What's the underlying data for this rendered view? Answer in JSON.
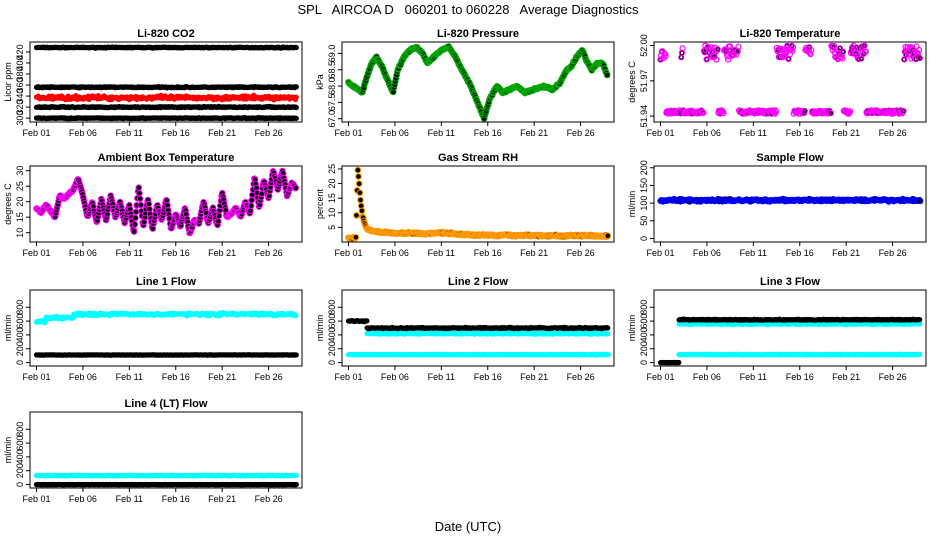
{
  "title": "SPL   AIRCOA D   060201 to 060228   Average Diagnostics",
  "x_axis_title": "Date (UTC)",
  "x_ticks": [
    "Feb 01",
    "Feb 06",
    "Feb 11",
    "Feb 16",
    "Feb 21",
    "Feb 26"
  ],
  "x_tick_days": [
    1,
    6,
    11,
    16,
    21,
    26
  ],
  "x_range_days": [
    0.3,
    29.6
  ],
  "colors": {
    "black": "#000000",
    "red": "#ff0000",
    "magenta": "#ff00ff",
    "green": "#00aa00",
    "cyan": "#00ffff",
    "blue": "#0000ff",
    "orange": "#ff9900"
  },
  "chart_data": [
    {
      "type": "scatter",
      "title": "Li-820 CO2",
      "ylabel": "Licor ppm",
      "yticks": [
        "300",
        "320",
        "340",
        "360",
        "380",
        "400",
        "420"
      ],
      "ylim": [
        293,
        438
      ],
      "series": [
        {
          "name": "ref-high",
          "color": "black",
          "baseline": 428,
          "noise": 1.2
        },
        {
          "name": "ref-mid",
          "color": "black",
          "baseline": 356,
          "noise": 1.5
        },
        {
          "name": "sample",
          "color": "red",
          "baseline": 337,
          "noise": 5
        },
        {
          "name": "ref-low",
          "color": "black",
          "baseline": 320,
          "noise": 1.5
        },
        {
          "name": "ref-bottom",
          "color": "black",
          "baseline": 300,
          "noise": 1.2
        }
      ]
    },
    {
      "type": "scatter",
      "title": "Li-820 Pressure",
      "ylabel": "kPa",
      "yticks": [
        "67.0",
        "67.5",
        "68.0",
        "68.5",
        "69.0"
      ],
      "ylim": [
        66.9,
        69.35
      ],
      "series": [
        {
          "name": "pressure",
          "color": "black",
          "edge": "green",
          "points": [
            [
              1,
              68.1
            ],
            [
              1.5,
              68.0
            ],
            [
              2.5,
              67.8
            ],
            [
              3,
              68.3
            ],
            [
              3.5,
              68.7
            ],
            [
              4,
              68.9
            ],
            [
              4.6,
              68.6
            ],
            [
              5.2,
              68.2
            ],
            [
              5.8,
              67.8
            ],
            [
              6.3,
              68.5
            ],
            [
              7,
              68.9
            ],
            [
              7.6,
              69.1
            ],
            [
              8.3,
              69.2
            ],
            [
              9,
              69.0
            ],
            [
              9.5,
              68.7
            ],
            [
              10.2,
              68.9
            ],
            [
              11,
              69.1
            ],
            [
              11.8,
              69.2
            ],
            [
              12.5,
              68.9
            ],
            [
              13.2,
              68.5
            ],
            [
              14,
              68.1
            ],
            [
              14.6,
              67.7
            ],
            [
              15.2,
              67.3
            ],
            [
              15.6,
              67.0
            ],
            [
              16.2,
              67.6
            ],
            [
              17,
              68.0
            ],
            [
              17.6,
              67.8
            ],
            [
              18.4,
              67.9
            ],
            [
              19.2,
              68.0
            ],
            [
              20,
              67.8
            ],
            [
              21,
              67.9
            ],
            [
              22,
              68.0
            ],
            [
              23,
              67.9
            ],
            [
              23.8,
              68.1
            ],
            [
              24.5,
              68.5
            ],
            [
              25,
              68.6
            ],
            [
              25.6,
              68.9
            ],
            [
              26.2,
              69.1
            ],
            [
              26.6,
              68.8
            ],
            [
              27.2,
              68.5
            ],
            [
              27.8,
              68.7
            ],
            [
              28.4,
              68.7
            ],
            [
              28.9,
              68.3
            ]
          ]
        }
      ]
    },
    {
      "type": "scatter",
      "title": "Li-820 Temperature",
      "ylabel": "degrees C",
      "yticks": [
        "51.94",
        "51.97",
        "52.00"
      ],
      "ylim": [
        51.935,
        52.003
      ],
      "series": [
        {
          "name": "cell-temp",
          "color": "magenta",
          "pattern": "two-level",
          "high": 52.0,
          "low": 51.942
        }
      ]
    },
    {
      "type": "scatter",
      "title": "Ambient Box Temperature",
      "ylabel": "degrees C",
      "yticks": [
        "10",
        "15",
        "20",
        "25",
        "30"
      ],
      "ylim": [
        7,
        31.5
      ],
      "series": [
        {
          "name": "box-temp",
          "color": "black",
          "edge": "magenta",
          "points": [
            [
              1,
              18
            ],
            [
              1.5,
              16.5
            ],
            [
              2,
              19
            ],
            [
              2.5,
              17
            ],
            [
              3,
              15
            ],
            [
              3.5,
              22
            ],
            [
              4,
              21
            ],
            [
              4.5,
              22.5
            ],
            [
              5,
              24
            ],
            [
              5.5,
              27.5
            ],
            [
              6,
              22
            ],
            [
              6.5,
              15
            ],
            [
              7,
              20
            ],
            [
              7.5,
              13
            ],
            [
              8,
              21
            ],
            [
              8.5,
              14
            ],
            [
              9,
              22
            ],
            [
              9.5,
              15
            ],
            [
              10,
              20
            ],
            [
              10.5,
              13
            ],
            [
              11,
              19
            ],
            [
              11.5,
              10
            ],
            [
              12,
              25
            ],
            [
              12.5,
              12
            ],
            [
              13,
              21
            ],
            [
              13.5,
              11
            ],
            [
              14,
              19
            ],
            [
              14.5,
              14
            ],
            [
              15,
              21
            ],
            [
              15.5,
              11
            ],
            [
              16,
              16
            ],
            [
              16.5,
              12
            ],
            [
              17,
              18
            ],
            [
              17.5,
              9.5
            ],
            [
              18,
              14
            ],
            [
              18.5,
              13
            ],
            [
              19,
              20
            ],
            [
              19.5,
              13
            ],
            [
              20,
              18
            ],
            [
              20.5,
              12
            ],
            [
              21,
              23
            ],
            [
              21.5,
              15
            ],
            [
              22,
              16
            ],
            [
              22.5,
              18
            ],
            [
              23,
              15
            ],
            [
              23.5,
              20
            ],
            [
              24,
              16
            ],
            [
              24.5,
              28
            ],
            [
              25,
              18
            ],
            [
              25.5,
              27
            ],
            [
              26,
              21
            ],
            [
              26.5,
              30
            ],
            [
              27,
              24
            ],
            [
              27.5,
              30
            ],
            [
              28,
              22
            ],
            [
              28.5,
              26
            ],
            [
              29,
              24
            ]
          ]
        }
      ]
    },
    {
      "type": "scatter",
      "title": "Gas Stream RH",
      "ylabel": "percent",
      "yticks": [
        "5",
        "10",
        "15",
        "20",
        "25"
      ],
      "ylim": [
        0,
        26
      ],
      "series": [
        {
          "name": "rh",
          "color": "black",
          "edge": "orange",
          "points": [
            [
              1,
              1.2
            ],
            [
              1.5,
              1.4
            ],
            [
              1.8,
              1.5
            ],
            [
              2,
              25
            ],
            [
              2.15,
              20
            ],
            [
              2.3,
              14
            ],
            [
              2.5,
              9
            ],
            [
              2.8,
              6
            ],
            [
              3,
              4.5
            ],
            [
              3.5,
              3.8
            ],
            [
              4,
              3.5
            ],
            [
              5,
              3.3
            ],
            [
              6,
              3.1
            ],
            [
              7,
              3.0
            ],
            [
              8,
              3.1
            ],
            [
              9,
              2.8
            ],
            [
              10,
              3.0
            ],
            [
              11,
              3.2
            ],
            [
              12,
              3.0
            ],
            [
              13,
              2.6
            ],
            [
              14,
              2.5
            ],
            [
              15,
              2.3
            ],
            [
              16,
              2.4
            ],
            [
              17,
              2.2
            ],
            [
              18,
              2.4
            ],
            [
              19,
              2.2
            ],
            [
              20,
              2.3
            ],
            [
              21,
              2.2
            ],
            [
              22,
              2.1
            ],
            [
              23,
              2.2
            ],
            [
              24,
              2.0
            ],
            [
              25,
              2.2
            ],
            [
              26,
              2.1
            ],
            [
              27,
              2.2
            ],
            [
              28,
              2.0
            ],
            [
              29,
              2.1
            ]
          ]
        }
      ]
    },
    {
      "type": "scatter",
      "title": "Sample Flow",
      "ylabel": "ml/min",
      "yticks": [
        "0",
        "50",
        "100",
        "150",
        "200"
      ],
      "ylim": [
        -10,
        205
      ],
      "series": [
        {
          "name": "sample-flow",
          "color": "black",
          "edge": "blue",
          "baseline": 108,
          "noise": 5,
          "start": 1
        }
      ]
    },
    {
      "type": "scatter",
      "title": "Line 1 Flow",
      "ylabel": "ml/min",
      "yticks": [
        "0",
        "200",
        "400",
        "600",
        "800"
      ],
      "ylim": [
        -50,
        1050
      ],
      "series": [
        {
          "name": "line1-cyan",
          "color": "cyan",
          "segments": [
            [
              1,
              2,
              590
            ],
            [
              2,
              5,
              650
            ],
            [
              5,
              29,
              700
            ]
          ],
          "noise": 30
        },
        {
          "name": "line1-black",
          "color": "black",
          "baseline": 110,
          "noise": 4,
          "start": 1
        }
      ]
    },
    {
      "type": "scatter",
      "title": "Line 2 Flow",
      "ylabel": "ml/min",
      "yticks": [
        "0",
        "200",
        "400",
        "600",
        "800"
      ],
      "ylim": [
        -50,
        1050
      ],
      "series": [
        {
          "name": "line2-cyan",
          "color": "cyan",
          "baseline": 115,
          "noise": 6,
          "start": 1
        },
        {
          "name": "line2-cyan-upper",
          "color": "cyan",
          "baseline": 420,
          "noise": 15,
          "start": 3
        },
        {
          "name": "line2-black",
          "color": "black",
          "segments": [
            [
              1,
              3,
              600
            ],
            [
              3,
              29,
              500
            ]
          ],
          "noise": 12
        }
      ]
    },
    {
      "type": "scatter",
      "title": "Line 3 Flow",
      "ylabel": "ml/min",
      "yticks": [
        "0",
        "200",
        "400",
        "600",
        "800"
      ],
      "ylim": [
        -50,
        1050
      ],
      "series": [
        {
          "name": "line3-zero",
          "color": "black",
          "segments": [
            [
              1,
              3,
              0
            ]
          ],
          "noise": 2
        },
        {
          "name": "line3-cyan-low",
          "color": "cyan",
          "baseline": 115,
          "noise": 6,
          "start": 3
        },
        {
          "name": "line3-cyan",
          "color": "cyan",
          "baseline": 560,
          "noise": 15,
          "start": 3
        },
        {
          "name": "line3-black",
          "color": "black",
          "baseline": 620,
          "noise": 10,
          "start": 3
        }
      ]
    },
    {
      "type": "scatter",
      "title": "Line 4 (LT) Flow",
      "ylabel": "ml/min",
      "yticks": [
        "0",
        "200",
        "400",
        "600",
        "800"
      ],
      "ylim": [
        -50,
        1050
      ],
      "series": [
        {
          "name": "line4-cyan",
          "color": "cyan",
          "baseline": 130,
          "noise": 8,
          "start": 1
        },
        {
          "name": "line4-black",
          "color": "black",
          "baseline": 0,
          "noise": 1,
          "start": 1
        }
      ]
    }
  ]
}
